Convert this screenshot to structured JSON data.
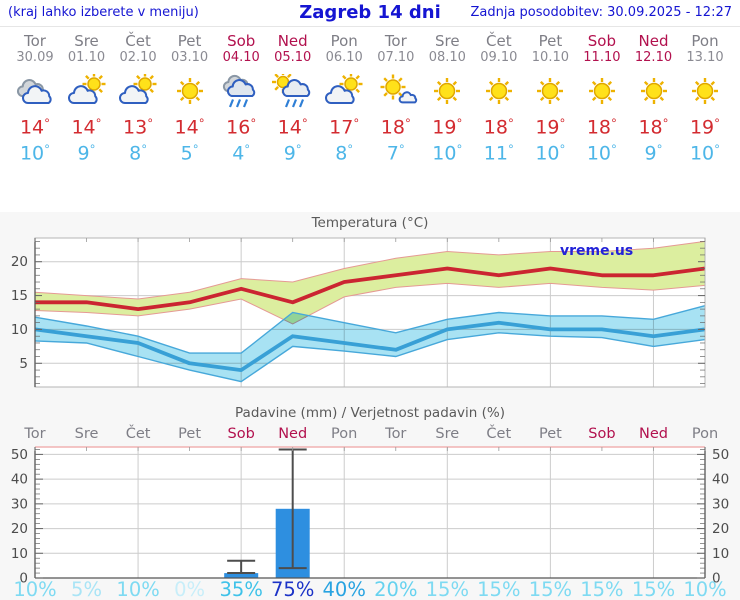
{
  "header": {
    "hint": "(kraj lahko izberete v meniju)",
    "title": "Zagreb 14 dni",
    "updated": "Zadnja posodobitev: 30.09.2025 - 12:27"
  },
  "watermark": "vreme.us",
  "colors": {
    "link_blue": "#1515d2",
    "weekday": "#7e7e86",
    "weekend": "#b2114e",
    "max_temp_text": "#d32b30",
    "min_temp_text": "#4db6e8",
    "max_line": "#cb2531",
    "max_band": "#dcee9f",
    "max_band_edge": "#e59a94",
    "min_line": "#38a0d6",
    "min_band": "#a8e2f3",
    "min_band_edge": "#47a8da",
    "bar_blue": "#2e8fe0",
    "grid": "#cccccc",
    "axis": "#555555",
    "pink_border": "#f0b2b2"
  },
  "days": [
    {
      "name": "Tor",
      "date": "30.09",
      "weekend": false,
      "icon": "cloudy",
      "tmax": "14",
      "tmin": "10",
      "precip_prob": "10%",
      "prob_color": "#7edaf2"
    },
    {
      "name": "Sre",
      "date": "01.10",
      "weekend": false,
      "icon": "sun-cloud",
      "tmax": "14",
      "tmin": "9",
      "precip_prob": "5%",
      "prob_color": "#a9e4f6"
    },
    {
      "name": "Čet",
      "date": "02.10",
      "weekend": false,
      "icon": "sun-cloud",
      "tmax": "13",
      "tmin": "8",
      "precip_prob": "10%",
      "prob_color": "#7edaf2"
    },
    {
      "name": "Pet",
      "date": "03.10",
      "weekend": false,
      "icon": "sunny",
      "tmax": "14",
      "tmin": "5",
      "precip_prob": "0%",
      "prob_color": "#c8eef9"
    },
    {
      "name": "Sob",
      "date": "04.10",
      "weekend": true,
      "icon": "rain",
      "tmax": "16",
      "tmin": "4",
      "precip_prob": "35%",
      "prob_color": "#3fc2e9"
    },
    {
      "name": "Ned",
      "date": "05.10",
      "weekend": true,
      "icon": "sun-rain",
      "tmax": "14",
      "tmin": "9",
      "precip_prob": "75%",
      "prob_color": "#1c33c7"
    },
    {
      "name": "Pon",
      "date": "06.10",
      "weekend": false,
      "icon": "sun-cloud",
      "tmax": "17",
      "tmin": "8",
      "precip_prob": "40%",
      "prob_color": "#28a3e1"
    },
    {
      "name": "Tor",
      "date": "07.10",
      "weekend": false,
      "icon": "sun-small-cloud",
      "tmax": "18",
      "tmin": "7",
      "precip_prob": "20%",
      "prob_color": "#66d2ef"
    },
    {
      "name": "Sre",
      "date": "08.10",
      "weekend": false,
      "icon": "sunny",
      "tmax": "19",
      "tmin": "10",
      "precip_prob": "15%",
      "prob_color": "#7edaf2"
    },
    {
      "name": "Čet",
      "date": "09.10",
      "weekend": false,
      "icon": "sunny",
      "tmax": "18",
      "tmin": "11",
      "precip_prob": "15%",
      "prob_color": "#7edaf2"
    },
    {
      "name": "Pet",
      "date": "10.10",
      "weekend": false,
      "icon": "sunny",
      "tmax": "19",
      "tmin": "10",
      "precip_prob": "15%",
      "prob_color": "#7edaf2"
    },
    {
      "name": "Sob",
      "date": "11.10",
      "weekend": true,
      "icon": "sunny",
      "tmax": "18",
      "tmin": "10",
      "precip_prob": "15%",
      "prob_color": "#7edaf2"
    },
    {
      "name": "Ned",
      "date": "12.10",
      "weekend": true,
      "icon": "sunny",
      "tmax": "18",
      "tmin": "9",
      "precip_prob": "15%",
      "prob_color": "#7edaf2"
    },
    {
      "name": "Pon",
      "date": "13.10",
      "weekend": false,
      "icon": "sunny",
      "tmax": "19",
      "tmin": "10",
      "precip_prob": "10%",
      "prob_color": "#7edaf2"
    }
  ],
  "chart_data": [
    {
      "type": "line",
      "title": "Temperatura (°C)",
      "categories": [
        "30.09",
        "01.10",
        "02.10",
        "03.10",
        "04.10",
        "05.10",
        "06.10",
        "07.10",
        "08.10",
        "09.10",
        "10.10",
        "11.10",
        "12.10",
        "13.10"
      ],
      "series": [
        {
          "name": "max temperature",
          "values": [
            14,
            14,
            13,
            14,
            16,
            14,
            17,
            18,
            19,
            18,
            19,
            18,
            18,
            19
          ]
        },
        {
          "name": "max range upper",
          "values": [
            15.5,
            15,
            14.5,
            15.5,
            17.5,
            17,
            19,
            20.5,
            21.5,
            21,
            21.5,
            21.5,
            22,
            23
          ]
        },
        {
          "name": "max range lower",
          "values": [
            12.8,
            12.5,
            12,
            13,
            14.5,
            10.8,
            14.8,
            16.2,
            16.8,
            16.2,
            16.8,
            16.2,
            15.8,
            16.5
          ]
        },
        {
          "name": "min temperature",
          "values": [
            10,
            9,
            8,
            5,
            4,
            9,
            8,
            7,
            10,
            11,
            10,
            10,
            9,
            10
          ]
        },
        {
          "name": "min range upper",
          "values": [
            11.8,
            10.5,
            9,
            6.5,
            6.5,
            12.5,
            11,
            9.5,
            11.5,
            12.5,
            12,
            12,
            11.5,
            13.5
          ]
        },
        {
          "name": "min range lower",
          "values": [
            8.3,
            8,
            6,
            4,
            2.3,
            7.5,
            6.8,
            6,
            8.5,
            9.5,
            9,
            8.8,
            7.5,
            8.5
          ]
        }
      ],
      "ylim": [
        1.5,
        23.5
      ],
      "yticks": [
        5,
        10,
        15,
        20
      ],
      "grid": true,
      "legend": "none"
    },
    {
      "type": "bar",
      "title": "Padavine (mm) / Verjetnost padavin (%)",
      "categories": [
        "Tor",
        "Sre",
        "Čet",
        "Pet",
        "Sob",
        "Ned",
        "Pon",
        "Tor",
        "Sre",
        "Čet",
        "Pet",
        "Sob",
        "Ned",
        "Pon"
      ],
      "values": [
        0,
        0,
        0,
        0,
        2,
        28,
        0,
        0,
        0,
        0,
        0,
        0,
        0,
        0
      ],
      "whiskers": [
        null,
        null,
        null,
        null,
        [
          2,
          7
        ],
        [
          4,
          52
        ],
        null,
        null,
        null,
        null,
        null,
        null,
        null,
        null
      ],
      "probabilities_percent": [
        10,
        5,
        10,
        0,
        35,
        75,
        40,
        20,
        15,
        15,
        15,
        15,
        15,
        10
      ],
      "ylim": [
        0,
        53
      ],
      "yticks": [
        0,
        10,
        20,
        30,
        40,
        50
      ],
      "grid": true,
      "legend": "none"
    }
  ]
}
